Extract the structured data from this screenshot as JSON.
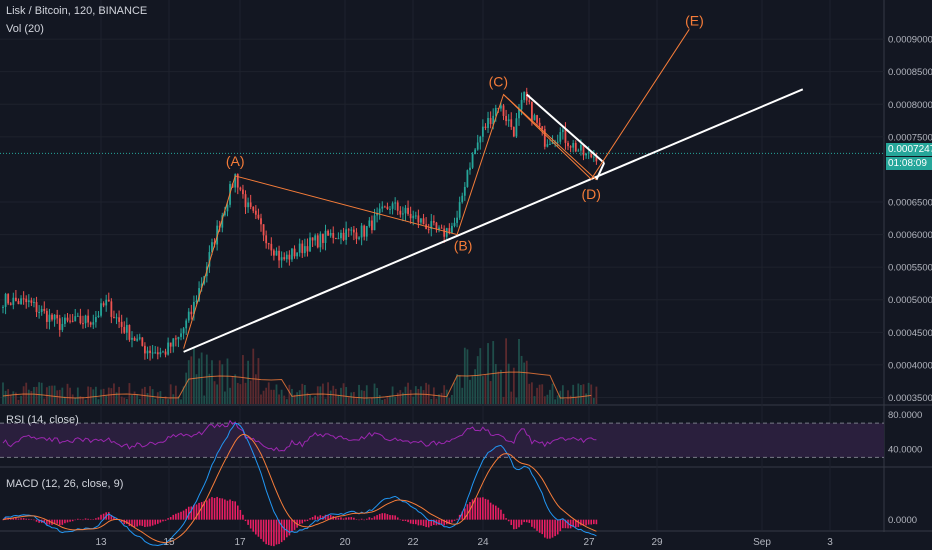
{
  "header": {
    "symbol_line": "Lisk / Bitcoin, 120, BINANCE",
    "volume_line": "Vol (20)"
  },
  "indicators": {
    "rsi_label": "RSI (14, close)",
    "macd_label": "MACD (12, 26, close, 9)"
  },
  "current_price": {
    "price": "0.0007247",
    "countdown": "01:08:09"
  },
  "colors": {
    "background": "#131722",
    "up_candle": "#26a69a",
    "down_candle": "#ef5350",
    "wave_line": "#f57c39",
    "trend_line": "#ffffff",
    "rsi_line": "#9c27b0",
    "rsi_band": "#2a1f3d",
    "macd_line": "#2196f3",
    "signal_line": "#f57c39",
    "hist": "#e91e63"
  },
  "chart_data": [
    {
      "type": "candlestick",
      "title": "Lisk / Bitcoin, 120, BINANCE",
      "y_ticks": [
        "0.0009000",
        "0.0008500",
        "0.0008000",
        "0.0007500",
        "0.0006500",
        "0.0006000",
        "0.0005500",
        "0.0005000",
        "0.0004500",
        "0.0004000",
        "0.0003500"
      ],
      "y_tick_values": [
        0.0009,
        0.00085,
        0.0008,
        0.00075,
        0.00065,
        0.0006,
        0.00055,
        0.0005,
        0.00045,
        0.0004,
        0.00035
      ],
      "ylim": [
        0.00034,
        0.00096
      ],
      "x_ticks": [
        "13",
        "15",
        "17",
        "20",
        "22",
        "24",
        "27",
        "29",
        "Sep",
        "3"
      ],
      "price_path": [
        {
          "bar": 0,
          "v": 0.0005
        },
        {
          "bar": 10,
          "v": 0.000495
        },
        {
          "bar": 22,
          "v": 0.000462
        },
        {
          "bar": 35,
          "v": 0.00047
        },
        {
          "bar": 40,
          "v": 0.000495
        },
        {
          "bar": 46,
          "v": 0.00046
        },
        {
          "bar": 55,
          "v": 0.000425
        },
        {
          "bar": 62,
          "v": 0.000418
        },
        {
          "bar": 68,
          "v": 0.00044
        },
        {
          "bar": 73,
          "v": 0.00048
        },
        {
          "bar": 78,
          "v": 0.00054
        },
        {
          "bar": 84,
          "v": 0.00062
        },
        {
          "bar": 90,
          "v": 0.00069
        },
        {
          "bar": 95,
          "v": 0.00064
        },
        {
          "bar": 100,
          "v": 0.00061
        },
        {
          "bar": 108,
          "v": 0.00056
        },
        {
          "bar": 118,
          "v": 0.000585
        },
        {
          "bar": 128,
          "v": 0.0006
        },
        {
          "bar": 140,
          "v": 0.000605
        },
        {
          "bar": 150,
          "v": 0.000645
        },
        {
          "bar": 162,
          "v": 0.00062
        },
        {
          "bar": 170,
          "v": 0.0006
        },
        {
          "bar": 176,
          "v": 0.00062
        },
        {
          "bar": 180,
          "v": 0.0007
        },
        {
          "bar": 186,
          "v": 0.00076
        },
        {
          "bar": 192,
          "v": 0.0008
        },
        {
          "bar": 198,
          "v": 0.00076
        },
        {
          "bar": 202,
          "v": 0.00081
        },
        {
          "bar": 210,
          "v": 0.000745
        },
        {
          "bar": 216,
          "v": 0.000755
        },
        {
          "bar": 220,
          "v": 0.00074
        },
        {
          "bar": 226,
          "v": 0.00072
        },
        {
          "bar": 230,
          "v": 0.000722
        }
      ],
      "wave_labels": [
        {
          "text": "(A)",
          "bar": 90,
          "v": 0.00069
        },
        {
          "text": "(B)",
          "bar": 176,
          "v": 0.0006
        },
        {
          "text": "(C)",
          "bar": 192,
          "v": 0.000815
        },
        {
          "text": "(D)",
          "bar": 228,
          "v": 0.000685
        },
        {
          "text": "(E)",
          "bar": 268,
          "v": 0.000915
        }
      ],
      "wave_path": [
        {
          "bar": 70,
          "v": 0.000425
        },
        {
          "bar": 90,
          "v": 0.00069
        },
        {
          "bar": 176,
          "v": 0.0006
        },
        {
          "bar": 194,
          "v": 0.000815
        },
        {
          "bar": 228,
          "v": 0.000685
        },
        {
          "bar": 266,
          "v": 0.000915
        }
      ],
      "flag_wave": [
        {
          "bar": 194,
          "v": 0.000815
        },
        {
          "bar": 230,
          "v": 0.000684
        }
      ],
      "trend_line": [
        {
          "bar": 70,
          "v": 0.00042
        },
        {
          "bar": 310,
          "v": 0.000823
        }
      ],
      "flag_upper": [
        {
          "bar": 203,
          "v": 0.000815
        },
        {
          "bar": 233,
          "v": 0.00071
        }
      ],
      "flag_lower": [
        {
          "bar": 230,
          "v": 0.000684
        },
        {
          "bar": 233,
          "v": 0.00071
        }
      ]
    },
    {
      "type": "area",
      "title": "RSI (14, close)",
      "y_ticks": [
        "80.0000",
        "40.0000"
      ],
      "y_tick_values": [
        80,
        40
      ],
      "ylim": [
        20,
        90
      ],
      "band": [
        30,
        70
      ]
    },
    {
      "type": "line",
      "title": "MACD (12, 26, close, 9)",
      "y_ticks": [
        "0.0000"
      ],
      "y_tick_values": [
        0
      ],
      "ylim": [
        -6e-06,
        3e-05
      ]
    }
  ]
}
